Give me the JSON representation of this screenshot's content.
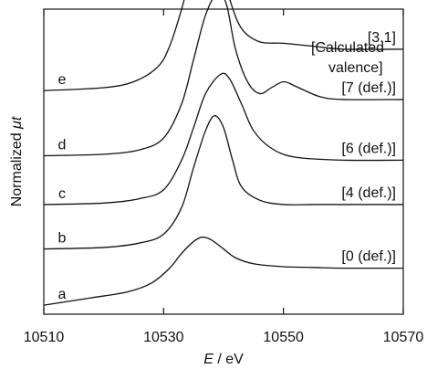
{
  "chart_data": {
    "type": "line",
    "title": "",
    "xlabel": {
      "var": "E",
      "unit": " / eV"
    },
    "ylabel": {
      "prefix": "Normalized ",
      "var": "μt"
    },
    "xlim": [
      10510,
      10570
    ],
    "xticks": [
      10510,
      10530,
      10550,
      10570
    ],
    "y_ticks_shown": false,
    "annotation_header": [
      "[Calculated",
      "valence]"
    ],
    "series": [
      {
        "name": "a",
        "valence_label": "[0 (def.)]",
        "offset": 0,
        "points": [
          [
            10510,
            -0.05
          ],
          [
            10518,
            0.0
          ],
          [
            10524,
            0.04
          ],
          [
            10528,
            0.1
          ],
          [
            10531,
            0.2
          ],
          [
            10533,
            0.3
          ],
          [
            10535,
            0.38
          ],
          [
            10536.5,
            0.41
          ],
          [
            10538,
            0.39
          ],
          [
            10540,
            0.33
          ],
          [
            10542,
            0.27
          ],
          [
            10545,
            0.23
          ],
          [
            10550,
            0.21
          ],
          [
            10555,
            0.205
          ],
          [
            10560,
            0.2
          ],
          [
            10570,
            0.2
          ]
        ]
      },
      {
        "name": "b",
        "valence_label": "[4 (def.)]",
        "offset": 0.33,
        "points": [
          [
            10510,
            0.0
          ],
          [
            10520,
            0.01
          ],
          [
            10526,
            0.04
          ],
          [
            10530,
            0.1
          ],
          [
            10533,
            0.28
          ],
          [
            10535,
            0.55
          ],
          [
            10537,
            0.8
          ],
          [
            10538.5,
            0.9
          ],
          [
            10540,
            0.82
          ],
          [
            10541.5,
            0.6
          ],
          [
            10543,
            0.42
          ],
          [
            10546,
            0.33
          ],
          [
            10550,
            0.3
          ],
          [
            10555,
            0.3
          ],
          [
            10560,
            0.3
          ],
          [
            10570,
            0.3
          ]
        ]
      },
      {
        "name": "c",
        "valence_label": "[6 (def.)]",
        "offset": 0.63,
        "points": [
          [
            10510,
            0.0
          ],
          [
            10520,
            0.01
          ],
          [
            10526,
            0.04
          ],
          [
            10530,
            0.1
          ],
          [
            10533,
            0.3
          ],
          [
            10535,
            0.52
          ],
          [
            10537,
            0.75
          ],
          [
            10539.5,
            0.88
          ],
          [
            10541,
            0.85
          ],
          [
            10543,
            0.68
          ],
          [
            10545,
            0.5
          ],
          [
            10548,
            0.38
          ],
          [
            10552,
            0.32
          ],
          [
            10560,
            0.3
          ],
          [
            10570,
            0.3
          ]
        ]
      },
      {
        "name": "d",
        "valence_label": "[7 (def.)]",
        "offset": 0.96,
        "points": [
          [
            10510,
            0.0
          ],
          [
            10520,
            0.01
          ],
          [
            10526,
            0.04
          ],
          [
            10530,
            0.12
          ],
          [
            10533,
            0.35
          ],
          [
            10535,
            0.65
          ],
          [
            10537,
            0.95
          ],
          [
            10539,
            1.1
          ],
          [
            10540.5,
            1.02
          ],
          [
            10542,
            0.72
          ],
          [
            10544,
            0.5
          ],
          [
            10546,
            0.42
          ],
          [
            10548,
            0.46
          ],
          [
            10550,
            0.5
          ],
          [
            10552,
            0.47
          ],
          [
            10556,
            0.4
          ],
          [
            10560,
            0.38
          ],
          [
            10570,
            0.38
          ]
        ]
      },
      {
        "name": "e",
        "valence_label": "[3.1]",
        "offset": 1.4,
        "points": [
          [
            10510,
            0.0
          ],
          [
            10520,
            0.02
          ],
          [
            10525,
            0.06
          ],
          [
            10529,
            0.16
          ],
          [
            10531,
            0.3
          ],
          [
            10533,
            0.55
          ],
          [
            10535,
            0.86
          ],
          [
            10536.5,
            1.02
          ],
          [
            10537.5,
            1.03
          ],
          [
            10539,
            0.9
          ],
          [
            10541,
            0.62
          ],
          [
            10543,
            0.42
          ],
          [
            10546,
            0.33
          ],
          [
            10550,
            0.32
          ],
          [
            10555,
            0.3
          ],
          [
            10560,
            0.28
          ],
          [
            10570,
            0.28
          ]
        ]
      }
    ]
  }
}
